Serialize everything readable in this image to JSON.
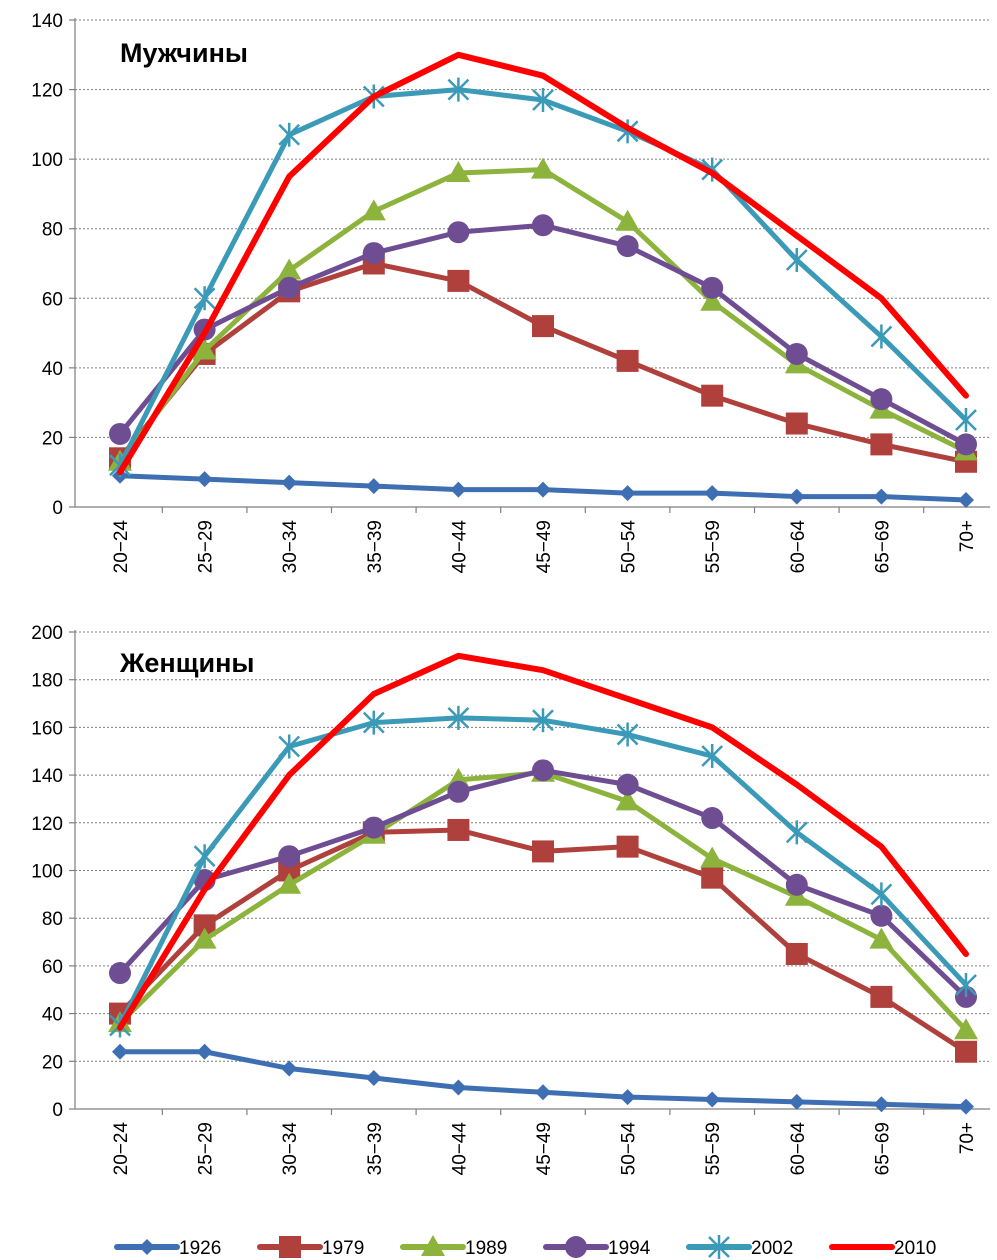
{
  "legend": {
    "position": "bottom",
    "entries": [
      "1926",
      "1979",
      "1989",
      "1994",
      "2002",
      "2010"
    ]
  },
  "series_styles": {
    "1926": {
      "color": "#3f6fb3",
      "marker": "diamond"
    },
    "1979": {
      "color": "#b0403c",
      "marker": "square"
    },
    "1989": {
      "color": "#8cb33c",
      "marker": "triangle"
    },
    "1994": {
      "color": "#6e4d92",
      "marker": "circle"
    },
    "2002": {
      "color": "#3b9ab7",
      "marker": "asterisk"
    },
    "2010": {
      "color": "#ff0000",
      "marker": "none"
    }
  },
  "chart_data": [
    {
      "type": "line",
      "title": "Мужчины",
      "grid": true,
      "ylim": [
        0,
        140
      ],
      "yticks": [
        "0",
        "20",
        "40",
        "60",
        "80",
        "100",
        "120",
        "140"
      ],
      "categories": [
        "20−24",
        "25−29",
        "30−34",
        "35−39",
        "40−44",
        "45−49",
        "50−54",
        "55−59",
        "60−64",
        "65−69",
        "70+"
      ],
      "series": [
        {
          "name": "1926",
          "values": [
            9,
            8,
            7,
            6,
            5,
            5,
            4,
            4,
            3,
            3,
            2
          ]
        },
        {
          "name": "1979",
          "values": [
            14,
            44,
            62,
            70,
            65,
            52,
            42,
            32,
            24,
            18,
            13
          ]
        },
        {
          "name": "1989",
          "values": [
            13,
            45,
            68,
            85,
            96,
            97,
            82,
            59,
            41,
            28,
            16
          ]
        },
        {
          "name": "1994",
          "values": [
            21,
            51,
            63,
            73,
            79,
            81,
            75,
            63,
            44,
            31,
            18
          ]
        },
        {
          "name": "2002",
          "values": [
            12,
            60,
            107,
            118,
            120,
            117,
            108,
            97,
            71,
            49,
            25
          ]
        },
        {
          "name": "2010",
          "values": [
            10,
            50,
            95,
            118,
            130,
            124,
            109,
            96,
            78,
            60,
            32
          ]
        }
      ]
    },
    {
      "type": "line",
      "title": "Женщины",
      "grid": true,
      "ylim": [
        0,
        200
      ],
      "yticks": [
        "0",
        "20",
        "40",
        "60",
        "80",
        "100",
        "120",
        "140",
        "160",
        "180",
        "200"
      ],
      "categories": [
        "20−24",
        "25−29",
        "30−34",
        "35−39",
        "40−44",
        "45−49",
        "50−54",
        "55−59",
        "60−64",
        "65−69",
        "70+"
      ],
      "series": [
        {
          "name": "1926",
          "values": [
            24,
            24,
            17,
            13,
            9,
            7,
            5,
            4,
            3,
            2,
            1
          ]
        },
        {
          "name": "1979",
          "values": [
            40,
            77,
            100,
            116,
            117,
            108,
            110,
            97,
            65,
            47,
            24
          ]
        },
        {
          "name": "1989",
          "values": [
            36,
            71,
            94,
            115,
            138,
            141,
            129,
            105,
            89,
            71,
            33
          ]
        },
        {
          "name": "1994",
          "values": [
            57,
            96,
            106,
            118,
            133,
            142,
            136,
            122,
            94,
            81,
            47
          ]
        },
        {
          "name": "2002",
          "values": [
            35,
            106,
            152,
            162,
            164,
            163,
            157,
            148,
            116,
            90,
            52
          ]
        },
        {
          "name": "2010",
          "values": [
            34,
            92,
            140,
            174,
            190,
            184,
            172,
            160,
            136,
            110,
            65
          ]
        }
      ]
    }
  ]
}
